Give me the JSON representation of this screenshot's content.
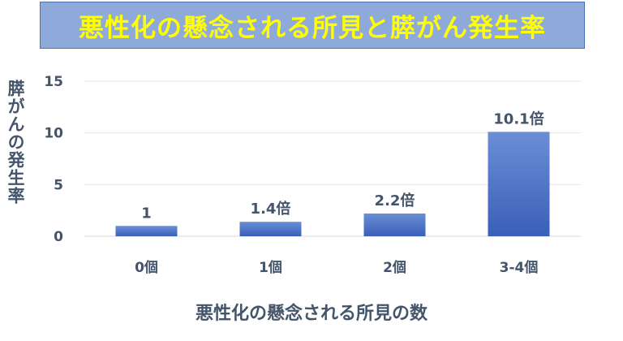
{
  "chart_data": {
    "type": "bar",
    "title": "悪性化の懸念される所見と膵がん発生率",
    "xlabel": "悪性化の懸念される所見の数",
    "ylabel": "膵がんの発生率",
    "categories": [
      "0個",
      "1個",
      "2個",
      "3-4個"
    ],
    "values": [
      1,
      1.4,
      2.2,
      10.1
    ],
    "data_labels": [
      "1",
      "1.4倍",
      "2.2倍",
      "10.1倍"
    ],
    "yticks": [
      0,
      5,
      10,
      15
    ],
    "ylim": [
      0,
      15
    ],
    "grid": true,
    "legend": "none",
    "colors": {
      "bar_top": "#6a8fd6",
      "bar_bottom": "#3a5fb8",
      "title_bg": "#8eaadb",
      "title_text": "#ffff00",
      "axis_text": "#44546a",
      "gridline": "#e6e6e6"
    }
  }
}
